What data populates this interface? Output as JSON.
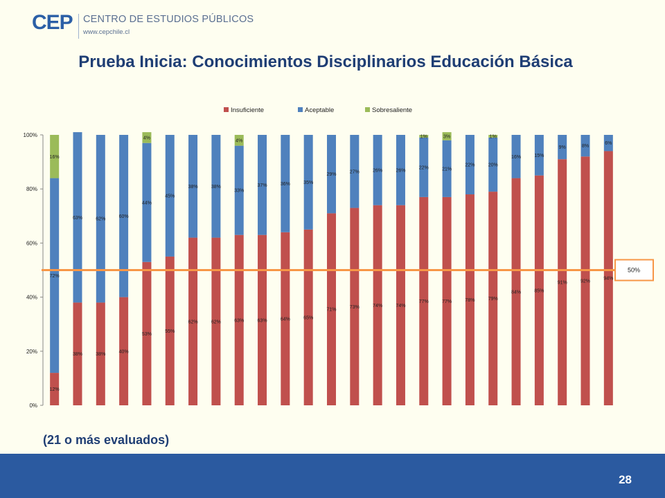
{
  "header": {
    "logo_mark": "CEP",
    "logo_name": "CENTRO DE ESTUDIOS PÚBLICOS",
    "logo_url": "www.cepchile.cl"
  },
  "subtitle": "(21 o más evaluados)",
  "page_number": "28",
  "chart_data": {
    "type": "bar",
    "stacked": true,
    "title": "Prueba Inicia: Conocimientos Disciplinarios Educación Básica",
    "xlabel": "",
    "ylabel": "",
    "ylim": [
      0,
      100
    ],
    "y_ticks": [
      "0%",
      "20%",
      "40%",
      "60%",
      "80%",
      "100%"
    ],
    "grid": false,
    "legend_position": "top",
    "categories": [
      "",
      "",
      "",
      "",
      "",
      "",
      "",
      "",
      "",
      "",
      "",
      "",
      "",
      "",
      "",
      "",
      "",
      "",
      "",
      "",
      "",
      "",
      "",
      "",
      ""
    ],
    "series": [
      {
        "name": "Insuficiente",
        "color": "#C0504D",
        "values": [
          12,
          38,
          38,
          40,
          53,
          55,
          62,
          62,
          63,
          63,
          64,
          65,
          71,
          73,
          74,
          74,
          77,
          77,
          78,
          79,
          84,
          85,
          91,
          92,
          94
        ],
        "labels": [
          "12%",
          "38%",
          "38%",
          "40%",
          "53%",
          "55%",
          "62%",
          "62%",
          "63%",
          "63%",
          "64%",
          "65%",
          "71%",
          "73%",
          "74%",
          "74%",
          "77%",
          "77%",
          "78%",
          "79%",
          "84%",
          "85%",
          "91%",
          "92%",
          "94%"
        ]
      },
      {
        "name": "Aceptable",
        "color": "#4F81BD",
        "values": [
          72,
          63,
          62,
          60,
          44,
          45,
          38,
          38,
          33,
          37,
          36,
          35,
          29,
          27,
          26,
          26,
          22,
          21,
          22,
          20,
          16,
          15,
          9,
          8,
          6
        ],
        "labels": [
          "72%",
          "63%",
          "62%",
          "60%",
          "44%",
          "45%",
          "38%",
          "38%",
          "33%",
          "37%",
          "36%",
          "35%",
          "29%",
          "27%",
          "26%",
          "26%",
          "22%",
          "21%",
          "22%",
          "20%",
          "16%",
          "15%",
          "9%",
          "8%",
          "6%"
        ]
      },
      {
        "name": "Sobresaliente",
        "color": "#9BBB59",
        "values": [
          16,
          0,
          0,
          0,
          4,
          0,
          0,
          0,
          4,
          0,
          0,
          0,
          0,
          0,
          0,
          0,
          1,
          3,
          0,
          1,
          0,
          0,
          0,
          0,
          0
        ],
        "labels": [
          "16%",
          "",
          "",
          "",
          "4%",
          "",
          "",
          "",
          "4%",
          "",
          "",
          "",
          "",
          "",
          "",
          "",
          "1%",
          "3%",
          "",
          "1%",
          "",
          "",
          "",
          "",
          ""
        ]
      }
    ],
    "reference_line": {
      "value": 50,
      "label": "50%",
      "color": "#F79646"
    }
  }
}
